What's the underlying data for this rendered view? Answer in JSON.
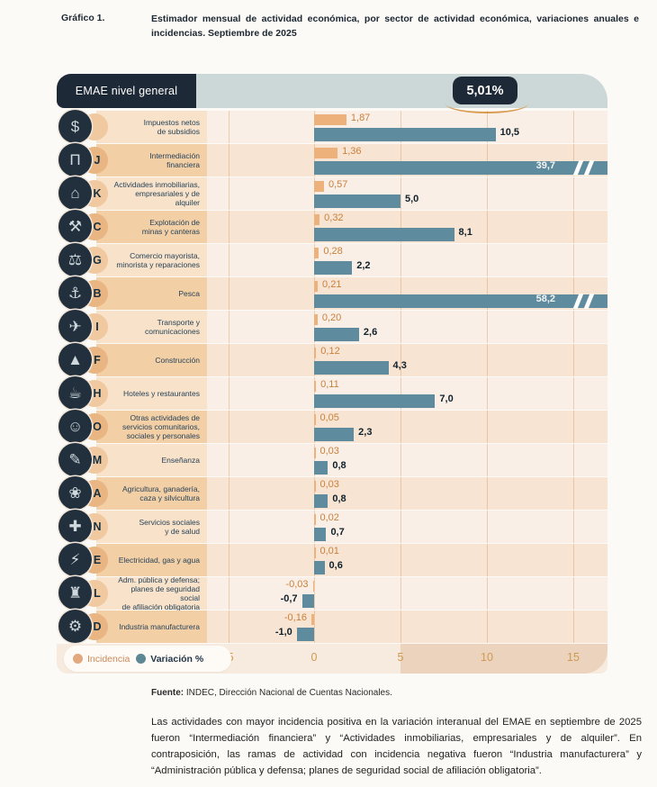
{
  "page": {
    "figure_label": "Gráfico 1.",
    "title": "Estimador mensual de actividad económica, por sector de actividad económica, variaciones anuales e incidencias. Septiembre de 2025"
  },
  "header": {
    "label": "EMAE nivel general",
    "value": "5,01%"
  },
  "legend": {
    "incidencia": "Incidencia",
    "variacion": "Variación %"
  },
  "axis": {
    "ticks": [
      "-5",
      "0",
      "5",
      "10",
      "15"
    ]
  },
  "colors": {
    "dark_navy": "#1d2936",
    "header_strip": "#ccd8d7",
    "bar_incidencia": "#edb17c",
    "bar_variacion": "#5f8b9f",
    "row_light_label": "#f8e2c9",
    "row_dark_label": "#f3cfa6",
    "row_light_chart": "#f9efe6",
    "row_dark_chart": "#f8e4d2",
    "bump_light": "#f0c9a0",
    "bump_dark": "#e9b583",
    "value_incidencia_text": "#c9803c",
    "value_variacion_text": "#10202b",
    "tick_text": "#cf9a4f"
  },
  "rows": [
    {
      "letter": "",
      "icon": "taxes-icon",
      "glyph": "$",
      "label": "Impuestos netos\nde subsidios",
      "inc": 1.87,
      "inc_label": "1,87",
      "var": 10.5,
      "var_label": "10,5",
      "truncated": false
    },
    {
      "letter": "J",
      "icon": "bank-icon",
      "glyph": "Π",
      "label": "Intermediación\nfinanciera",
      "inc": 1.36,
      "inc_label": "1,36",
      "var": 39.7,
      "var_label": "39,7",
      "truncated": true
    },
    {
      "letter": "K",
      "icon": "real-estate-icon",
      "glyph": "⌂",
      "label": "Actividades inmobiliarias,\nempresariales y de alquiler",
      "inc": 0.57,
      "inc_label": "0,57",
      "var": 5.0,
      "var_label": "5,0",
      "truncated": false
    },
    {
      "letter": "C",
      "icon": "mining-icon",
      "glyph": "⚒",
      "label": "Explotación de\nminas y canteras",
      "inc": 0.32,
      "inc_label": "0,32",
      "var": 8.1,
      "var_label": "8,1",
      "truncated": false
    },
    {
      "letter": "G",
      "icon": "commerce-icon",
      "glyph": "⚖",
      "label": "Comercio mayorista,\nminorista y reparaciones",
      "inc": 0.28,
      "inc_label": "0,28",
      "var": 2.2,
      "var_label": "2,2",
      "truncated": false
    },
    {
      "letter": "B",
      "icon": "fishing-icon",
      "glyph": "⚓",
      "label": "Pesca",
      "inc": 0.21,
      "inc_label": "0,21",
      "var": 58.2,
      "var_label": "58,2",
      "truncated": true
    },
    {
      "letter": "I",
      "icon": "transport-icon",
      "glyph": "✈",
      "label": "Transporte y\ncomunicaciones",
      "inc": 0.2,
      "inc_label": "0,20",
      "var": 2.6,
      "var_label": "2,6",
      "truncated": false
    },
    {
      "letter": "F",
      "icon": "construction-icon",
      "glyph": "▲",
      "label": "Construcción",
      "inc": 0.12,
      "inc_label": "0,12",
      "var": 4.3,
      "var_label": "4,3",
      "truncated": false
    },
    {
      "letter": "H",
      "icon": "hotel-icon",
      "glyph": "☕",
      "label": "Hoteles y restaurantes",
      "inc": 0.11,
      "inc_label": "0,11",
      "var": 7.0,
      "var_label": "7,0",
      "truncated": false
    },
    {
      "letter": "O",
      "icon": "community-icon",
      "glyph": "☺",
      "label": "Otras actividades de\nservicios comunitarios,\nsociales y personales",
      "inc": 0.05,
      "inc_label": "0,05",
      "var": 2.3,
      "var_label": "2,3",
      "truncated": false
    },
    {
      "letter": "M",
      "icon": "education-icon",
      "glyph": "✎",
      "label": "Enseñanza",
      "inc": 0.03,
      "inc_label": "0,03",
      "var": 0.8,
      "var_label": "0,8",
      "truncated": false
    },
    {
      "letter": "A",
      "icon": "agriculture-icon",
      "glyph": "❀",
      "label": "Agricultura, ganadería,\ncaza y silvicultura",
      "inc": 0.03,
      "inc_label": "0,03",
      "var": 0.8,
      "var_label": "0,8",
      "truncated": false
    },
    {
      "letter": "N",
      "icon": "health-icon",
      "glyph": "✚",
      "label": "Servicios sociales\ny de salud",
      "inc": 0.02,
      "inc_label": "0,02",
      "var": 0.7,
      "var_label": "0,7",
      "truncated": false
    },
    {
      "letter": "E",
      "icon": "utilities-icon",
      "glyph": "⚡",
      "label": "Electricidad, gas y agua",
      "inc": 0.01,
      "inc_label": "0,01",
      "var": 0.6,
      "var_label": "0,6",
      "truncated": false
    },
    {
      "letter": "L",
      "icon": "public-admin-icon",
      "glyph": "♜",
      "label": "Adm. pública y defensa;\nplanes de seguridad social\nde afiliación obligatoria",
      "inc": -0.03,
      "inc_label": "-0,03",
      "var": -0.7,
      "var_label": "-0,7",
      "truncated": false
    },
    {
      "letter": "D",
      "icon": "manufacturing-icon",
      "glyph": "⚙",
      "label": "Industria manufacturera",
      "inc": -0.16,
      "inc_label": "-0,16",
      "var": -1.0,
      "var_label": "-1,0",
      "truncated": false
    }
  ],
  "chart_data": {
    "type": "bar",
    "orientation": "horizontal",
    "title": "Estimador mensual de actividad económica, por sector de actividad económica, variaciones anuales e incidencias. Septiembre de 2025",
    "emae_nivel_general": "5,01%",
    "categories": [
      "Impuestos netos de subsidios",
      "Intermediación financiera",
      "Actividades inmobiliarias, empresariales y de alquiler",
      "Explotación de minas y canteras",
      "Comercio mayorista, minorista y reparaciones",
      "Pesca",
      "Transporte y comunicaciones",
      "Construcción",
      "Hoteles y restaurantes",
      "Otras actividades de servicios comunitarios, sociales y personales",
      "Enseñanza",
      "Agricultura, ganadería, caza y silvicultura",
      "Servicios sociales y de salud",
      "Electricidad, gas y agua",
      "Adm. pública y defensa; planes de seguridad social de afiliación obligatoria",
      "Industria manufacturera"
    ],
    "category_letters": [
      "",
      "J",
      "K",
      "C",
      "G",
      "B",
      "I",
      "F",
      "H",
      "O",
      "M",
      "A",
      "N",
      "E",
      "L",
      "D"
    ],
    "series": [
      {
        "name": "Incidencia",
        "values": [
          1.87,
          1.36,
          0.57,
          0.32,
          0.28,
          0.21,
          0.2,
          0.12,
          0.11,
          0.05,
          0.03,
          0.03,
          0.02,
          0.01,
          -0.03,
          -0.16
        ]
      },
      {
        "name": "Variación %",
        "values": [
          10.5,
          39.7,
          5.0,
          8.1,
          2.2,
          58.2,
          2.6,
          4.3,
          7.0,
          2.3,
          0.8,
          0.8,
          0.7,
          0.6,
          -0.7,
          -1.0
        ]
      }
    ],
    "xlim": [
      -5,
      17
    ],
    "x_ticks": [
      -5,
      0,
      5,
      10,
      15
    ],
    "truncated_bars": [
      39.7,
      58.2
    ],
    "legend_position": "bottom-left",
    "grid": true
  },
  "fuente": {
    "bold": "Fuente:",
    "rest": " INDEC, Dirección Nacional de Cuentas Nacionales."
  },
  "paragraph": "Las actividades con mayor incidencia positiva en la variación interanual del EMAE en septiembre de 2025 fueron “Intermediación financiera” y “Actividades inmobiliarias, empresariales y de alquiler”. En contraposición, las ramas de actividad con incidencia negativa fueron “Industria manufacturera” y “Administración pública y defensa; planes de seguridad social de afiliación obligatoria”."
}
